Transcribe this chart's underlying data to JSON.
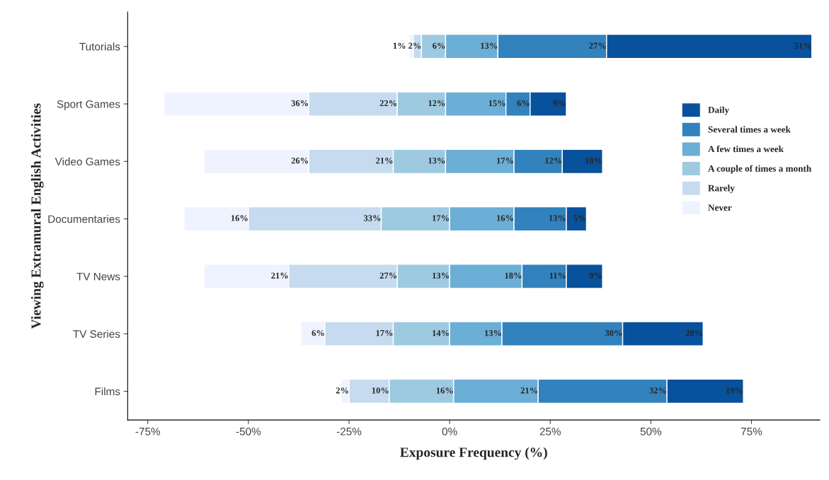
{
  "chart_data": {
    "type": "bar",
    "orientation": "horizontal",
    "xlabel": "Exposure Frequency (%)",
    "ylabel": "Viewing Extramural English Activities",
    "categories": [
      "Tutorials",
      "Sport Games",
      "Video Games",
      "Documentaries",
      "TV News",
      "TV Series",
      "Films"
    ],
    "series": [
      {
        "name": "Never",
        "color": "#eff3ff",
        "base": [
          -10,
          -71,
          -61,
          -66,
          -61,
          -37,
          -27
        ],
        "values": [
          1,
          36,
          26,
          16,
          21,
          6,
          2
        ],
        "value_labels": [
          "1%",
          "36%",
          "26%",
          "16%",
          "21%",
          "6%",
          "2%"
        ]
      },
      {
        "name": "Rarely",
        "color": "#c6dbef",
        "base": [
          -9,
          -35,
          -35,
          -50,
          -40,
          -31,
          -25
        ],
        "values": [
          2,
          22,
          21,
          33,
          27,
          17,
          10
        ],
        "value_labels": [
          "2%",
          "22%",
          "21%",
          "33%",
          "27%",
          "17%",
          "10%"
        ]
      },
      {
        "name": "A couple of times a month",
        "color": "#9ecae1",
        "base": [
          -7,
          -13,
          -14,
          -17,
          -13,
          -14,
          -15
        ],
        "values": [
          6,
          12,
          13,
          17,
          13,
          14,
          16
        ],
        "value_labels": [
          "6%",
          "12%",
          "13%",
          "17%",
          "13%",
          "14%",
          "16%"
        ]
      },
      {
        "name": "A few times a week",
        "color": "#6baed6",
        "base": [
          -1,
          -1,
          -1,
          0,
          0,
          0,
          1
        ],
        "values": [
          13,
          15,
          17,
          16,
          18,
          13,
          21
        ],
        "value_labels": [
          "13%",
          "15%",
          "17%",
          "16%",
          "18%",
          "13%",
          "21%"
        ]
      },
      {
        "name": "Several times a week",
        "color": "#3182bd",
        "base": [
          12,
          14,
          16,
          16,
          18,
          13,
          22
        ],
        "values": [
          27,
          6,
          12,
          13,
          11,
          30,
          32
        ],
        "value_labels": [
          "27%",
          "6%",
          "12%",
          "13%",
          "11%",
          "30%",
          "32%"
        ]
      },
      {
        "name": "Daily",
        "color": "#08519c",
        "base": [
          39,
          20,
          28,
          29,
          29,
          43,
          54
        ],
        "values": [
          51,
          9,
          10,
          5,
          9,
          20,
          19
        ],
        "value_labels": [
          "51%",
          "9%",
          "10%",
          "5%",
          "9%",
          "20%",
          "19%"
        ]
      }
    ],
    "xlim": [
      -80,
      92
    ],
    "xticks": [
      {
        "value": -75,
        "label": "-75%"
      },
      {
        "value": -50,
        "label": "-50%"
      },
      {
        "value": -25,
        "label": "-25%"
      },
      {
        "value": 0,
        "label": "0%"
      },
      {
        "value": 25,
        "label": "25%"
      },
      {
        "value": 50,
        "label": "50%"
      },
      {
        "value": 75,
        "label": "75%"
      }
    ],
    "grid": false,
    "legend": "right"
  }
}
